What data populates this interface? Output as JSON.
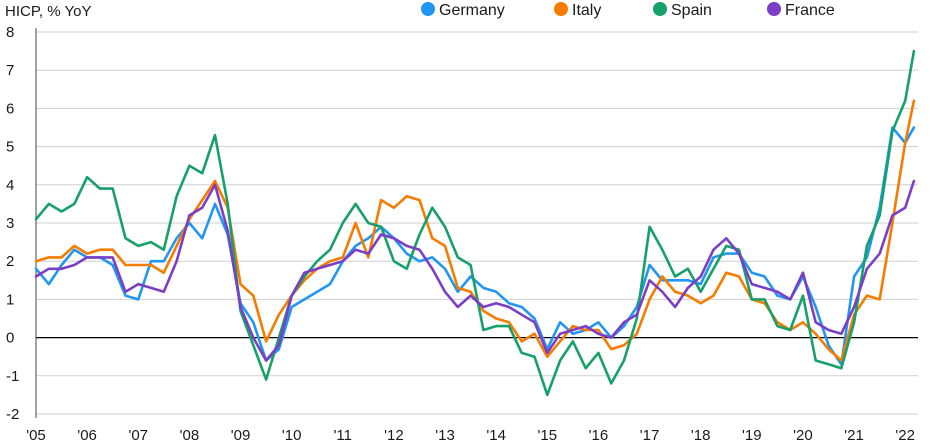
{
  "chart_data": {
    "type": "line",
    "ylabel": "HICP, % YoY",
    "ylim": [
      -2,
      8
    ],
    "yticks": [
      -2,
      -1,
      0,
      1,
      2,
      3,
      4,
      5,
      6,
      7,
      8
    ],
    "xlim": [
      2005.0,
      2022.25
    ],
    "xticks": [
      {
        "value": 2005,
        "label": "'05"
      },
      {
        "value": 2006,
        "label": "'06"
      },
      {
        "value": 2007,
        "label": "'07"
      },
      {
        "value": 2008,
        "label": "'08"
      },
      {
        "value": 2009,
        "label": "'09"
      },
      {
        "value": 2010,
        "label": "'10"
      },
      {
        "value": 2011,
        "label": "'11"
      },
      {
        "value": 2012,
        "label": "'12"
      },
      {
        "value": 2013,
        "label": "'13"
      },
      {
        "value": 2014,
        "label": "'14"
      },
      {
        "value": 2015,
        "label": "'15"
      },
      {
        "value": 2016,
        "label": "'16"
      },
      {
        "value": 2017,
        "label": "'17"
      },
      {
        "value": 2018,
        "label": "'18"
      },
      {
        "value": 2019,
        "label": "'19"
      },
      {
        "value": 2020,
        "label": "'20"
      },
      {
        "value": 2021,
        "label": "'21"
      },
      {
        "value": 2022,
        "label": "'22"
      }
    ],
    "grid": true,
    "legend_position": "top",
    "series": [
      {
        "name": "Germany",
        "color": "#2196f3",
        "points": [
          [
            2005.0,
            1.8
          ],
          [
            2005.25,
            1.4
          ],
          [
            2005.5,
            1.9
          ],
          [
            2005.75,
            2.3
          ],
          [
            2006.0,
            2.1
          ],
          [
            2006.25,
            2.1
          ],
          [
            2006.5,
            1.9
          ],
          [
            2006.75,
            1.1
          ],
          [
            2007.0,
            1.0
          ],
          [
            2007.25,
            2.0
          ],
          [
            2007.5,
            2.0
          ],
          [
            2007.75,
            2.6
          ],
          [
            2008.0,
            3.0
          ],
          [
            2008.25,
            2.6
          ],
          [
            2008.5,
            3.5
          ],
          [
            2008.75,
            2.7
          ],
          [
            2009.0,
            0.9
          ],
          [
            2009.25,
            0.4
          ],
          [
            2009.5,
            -0.6
          ],
          [
            2009.75,
            -0.3
          ],
          [
            2010.0,
            0.8
          ],
          [
            2010.25,
            1.0
          ],
          [
            2010.5,
            1.2
          ],
          [
            2010.75,
            1.4
          ],
          [
            2011.0,
            2.0
          ],
          [
            2011.25,
            2.4
          ],
          [
            2011.5,
            2.6
          ],
          [
            2011.75,
            2.9
          ],
          [
            2012.0,
            2.6
          ],
          [
            2012.25,
            2.2
          ],
          [
            2012.5,
            2.0
          ],
          [
            2012.75,
            2.1
          ],
          [
            2013.0,
            1.8
          ],
          [
            2013.25,
            1.2
          ],
          [
            2013.5,
            1.6
          ],
          [
            2013.75,
            1.3
          ],
          [
            2014.0,
            1.2
          ],
          [
            2014.25,
            0.9
          ],
          [
            2014.5,
            0.8
          ],
          [
            2014.75,
            0.5
          ],
          [
            2015.0,
            -0.3
          ],
          [
            2015.25,
            0.4
          ],
          [
            2015.5,
            0.1
          ],
          [
            2015.75,
            0.2
          ],
          [
            2016.0,
            0.4
          ],
          [
            2016.25,
            0.0
          ],
          [
            2016.5,
            0.3
          ],
          [
            2016.75,
            0.8
          ],
          [
            2017.0,
            1.9
          ],
          [
            2017.25,
            1.5
          ],
          [
            2017.5,
            1.5
          ],
          [
            2017.75,
            1.5
          ],
          [
            2018.0,
            1.4
          ],
          [
            2018.25,
            2.1
          ],
          [
            2018.5,
            2.2
          ],
          [
            2018.75,
            2.2
          ],
          [
            2019.0,
            1.7
          ],
          [
            2019.25,
            1.6
          ],
          [
            2019.5,
            1.1
          ],
          [
            2019.75,
            1.0
          ],
          [
            2020.0,
            1.6
          ],
          [
            2020.25,
            0.8
          ],
          [
            2020.5,
            -0.2
          ],
          [
            2020.75,
            -0.7
          ],
          [
            2021.0,
            1.6
          ],
          [
            2021.25,
            2.1
          ],
          [
            2021.5,
            3.4
          ],
          [
            2021.75,
            5.5
          ],
          [
            2022.0,
            5.1
          ],
          [
            2022.17,
            5.5
          ]
        ]
      },
      {
        "name": "Italy",
        "color": "#f57c00",
        "points": [
          [
            2005.0,
            2.0
          ],
          [
            2005.25,
            2.1
          ],
          [
            2005.5,
            2.1
          ],
          [
            2005.75,
            2.4
          ],
          [
            2006.0,
            2.2
          ],
          [
            2006.25,
            2.3
          ],
          [
            2006.5,
            2.3
          ],
          [
            2006.75,
            1.9
          ],
          [
            2007.0,
            1.9
          ],
          [
            2007.25,
            1.9
          ],
          [
            2007.5,
            1.7
          ],
          [
            2007.75,
            2.4
          ],
          [
            2008.0,
            3.1
          ],
          [
            2008.25,
            3.6
          ],
          [
            2008.5,
            4.1
          ],
          [
            2008.75,
            3.4
          ],
          [
            2009.0,
            1.4
          ],
          [
            2009.25,
            1.1
          ],
          [
            2009.5,
            -0.1
          ],
          [
            2009.75,
            0.6
          ],
          [
            2010.0,
            1.1
          ],
          [
            2010.25,
            1.5
          ],
          [
            2010.5,
            1.8
          ],
          [
            2010.75,
            2.0
          ],
          [
            2011.0,
            2.1
          ],
          [
            2011.25,
            3.0
          ],
          [
            2011.5,
            2.1
          ],
          [
            2011.75,
            3.6
          ],
          [
            2012.0,
            3.4
          ],
          [
            2012.25,
            3.7
          ],
          [
            2012.5,
            3.6
          ],
          [
            2012.75,
            2.6
          ],
          [
            2013.0,
            2.4
          ],
          [
            2013.25,
            1.3
          ],
          [
            2013.5,
            1.2
          ],
          [
            2013.75,
            0.7
          ],
          [
            2014.0,
            0.5
          ],
          [
            2014.25,
            0.4
          ],
          [
            2014.5,
            -0.1
          ],
          [
            2014.75,
            0.1
          ],
          [
            2015.0,
            -0.5
          ],
          [
            2015.25,
            -0.1
          ],
          [
            2015.5,
            0.3
          ],
          [
            2015.75,
            0.2
          ],
          [
            2016.0,
            0.2
          ],
          [
            2016.25,
            -0.3
          ],
          [
            2016.5,
            -0.2
          ],
          [
            2016.75,
            0.1
          ],
          [
            2017.0,
            1.0
          ],
          [
            2017.25,
            1.6
          ],
          [
            2017.5,
            1.2
          ],
          [
            2017.75,
            1.1
          ],
          [
            2018.0,
            0.9
          ],
          [
            2018.25,
            1.1
          ],
          [
            2018.5,
            1.7
          ],
          [
            2018.75,
            1.6
          ],
          [
            2019.0,
            1.0
          ],
          [
            2019.25,
            0.9
          ],
          [
            2019.5,
            0.4
          ],
          [
            2019.75,
            0.2
          ],
          [
            2020.0,
            0.4
          ],
          [
            2020.25,
            0.1
          ],
          [
            2020.5,
            -0.3
          ],
          [
            2020.75,
            -0.6
          ],
          [
            2021.0,
            0.6
          ],
          [
            2021.25,
            1.1
          ],
          [
            2021.5,
            1.0
          ],
          [
            2021.75,
            3.0
          ],
          [
            2022.0,
            5.1
          ],
          [
            2022.17,
            6.2
          ]
        ]
      },
      {
        "name": "Spain",
        "color": "#16a06a",
        "points": [
          [
            2005.0,
            3.1
          ],
          [
            2005.25,
            3.5
          ],
          [
            2005.5,
            3.3
          ],
          [
            2005.75,
            3.5
          ],
          [
            2006.0,
            4.2
          ],
          [
            2006.25,
            3.9
          ],
          [
            2006.5,
            3.9
          ],
          [
            2006.75,
            2.6
          ],
          [
            2007.0,
            2.4
          ],
          [
            2007.25,
            2.5
          ],
          [
            2007.5,
            2.3
          ],
          [
            2007.75,
            3.7
          ],
          [
            2008.0,
            4.5
          ],
          [
            2008.25,
            4.3
          ],
          [
            2008.5,
            5.3
          ],
          [
            2008.75,
            3.5
          ],
          [
            2009.0,
            0.7
          ],
          [
            2009.25,
            -0.2
          ],
          [
            2009.5,
            -1.1
          ],
          [
            2009.75,
            0.0
          ],
          [
            2010.0,
            1.1
          ],
          [
            2010.25,
            1.6
          ],
          [
            2010.5,
            2.0
          ],
          [
            2010.75,
            2.3
          ],
          [
            2011.0,
            3.0
          ],
          [
            2011.25,
            3.5
          ],
          [
            2011.5,
            3.0
          ],
          [
            2011.75,
            2.9
          ],
          [
            2012.0,
            2.0
          ],
          [
            2012.25,
            1.8
          ],
          [
            2012.5,
            2.7
          ],
          [
            2012.75,
            3.4
          ],
          [
            2013.0,
            2.9
          ],
          [
            2013.25,
            2.1
          ],
          [
            2013.5,
            1.9
          ],
          [
            2013.75,
            0.2
          ],
          [
            2014.0,
            0.3
          ],
          [
            2014.25,
            0.3
          ],
          [
            2014.5,
            -0.4
          ],
          [
            2014.75,
            -0.5
          ],
          [
            2015.0,
            -1.5
          ],
          [
            2015.25,
            -0.6
          ],
          [
            2015.5,
            -0.1
          ],
          [
            2015.75,
            -0.8
          ],
          [
            2016.0,
            -0.4
          ],
          [
            2016.25,
            -1.2
          ],
          [
            2016.5,
            -0.6
          ],
          [
            2016.75,
            0.5
          ],
          [
            2017.0,
            2.9
          ],
          [
            2017.25,
            2.3
          ],
          [
            2017.5,
            1.6
          ],
          [
            2017.75,
            1.8
          ],
          [
            2018.0,
            1.2
          ],
          [
            2018.25,
            1.8
          ],
          [
            2018.5,
            2.4
          ],
          [
            2018.75,
            2.3
          ],
          [
            2019.0,
            1.0
          ],
          [
            2019.25,
            1.0
          ],
          [
            2019.5,
            0.3
          ],
          [
            2019.75,
            0.2
          ],
          [
            2020.0,
            1.1
          ],
          [
            2020.25,
            -0.6
          ],
          [
            2020.5,
            -0.7
          ],
          [
            2020.75,
            -0.8
          ],
          [
            2021.0,
            0.4
          ],
          [
            2021.25,
            2.4
          ],
          [
            2021.5,
            3.2
          ],
          [
            2021.75,
            5.4
          ],
          [
            2022.0,
            6.2
          ],
          [
            2022.17,
            7.5
          ]
        ]
      },
      {
        "name": "France",
        "color": "#7b3fc6",
        "points": [
          [
            2005.0,
            1.6
          ],
          [
            2005.25,
            1.8
          ],
          [
            2005.5,
            1.8
          ],
          [
            2005.75,
            1.9
          ],
          [
            2006.0,
            2.1
          ],
          [
            2006.25,
            2.1
          ],
          [
            2006.5,
            2.1
          ],
          [
            2006.75,
            1.2
          ],
          [
            2007.0,
            1.4
          ],
          [
            2007.25,
            1.3
          ],
          [
            2007.5,
            1.2
          ],
          [
            2007.75,
            2.0
          ],
          [
            2008.0,
            3.2
          ],
          [
            2008.25,
            3.4
          ],
          [
            2008.5,
            4.0
          ],
          [
            2008.75,
            2.8
          ],
          [
            2009.0,
            0.8
          ],
          [
            2009.25,
            0.0
          ],
          [
            2009.5,
            -0.6
          ],
          [
            2009.75,
            -0.2
          ],
          [
            2010.0,
            1.1
          ],
          [
            2010.25,
            1.7
          ],
          [
            2010.5,
            1.8
          ],
          [
            2010.75,
            1.9
          ],
          [
            2011.0,
            2.0
          ],
          [
            2011.25,
            2.3
          ],
          [
            2011.5,
            2.2
          ],
          [
            2011.75,
            2.7
          ],
          [
            2012.0,
            2.6
          ],
          [
            2012.25,
            2.4
          ],
          [
            2012.5,
            2.3
          ],
          [
            2012.75,
            1.8
          ],
          [
            2013.0,
            1.2
          ],
          [
            2013.25,
            0.8
          ],
          [
            2013.5,
            1.1
          ],
          [
            2013.75,
            0.8
          ],
          [
            2014.0,
            0.9
          ],
          [
            2014.25,
            0.8
          ],
          [
            2014.5,
            0.6
          ],
          [
            2014.75,
            0.4
          ],
          [
            2015.0,
            -0.4
          ],
          [
            2015.25,
            0.1
          ],
          [
            2015.5,
            0.2
          ],
          [
            2015.75,
            0.3
          ],
          [
            2016.0,
            0.1
          ],
          [
            2016.25,
            0.0
          ],
          [
            2016.5,
            0.4
          ],
          [
            2016.75,
            0.6
          ],
          [
            2017.0,
            1.5
          ],
          [
            2017.25,
            1.2
          ],
          [
            2017.5,
            0.8
          ],
          [
            2017.75,
            1.3
          ],
          [
            2018.0,
            1.6
          ],
          [
            2018.25,
            2.3
          ],
          [
            2018.5,
            2.6
          ],
          [
            2018.75,
            2.2
          ],
          [
            2019.0,
            1.4
          ],
          [
            2019.25,
            1.3
          ],
          [
            2019.5,
            1.2
          ],
          [
            2019.75,
            1.0
          ],
          [
            2020.0,
            1.7
          ],
          [
            2020.25,
            0.4
          ],
          [
            2020.5,
            0.2
          ],
          [
            2020.75,
            0.1
          ],
          [
            2021.0,
            0.8
          ],
          [
            2021.25,
            1.8
          ],
          [
            2021.5,
            2.2
          ],
          [
            2021.75,
            3.2
          ],
          [
            2022.0,
            3.4
          ],
          [
            2022.17,
            4.1
          ]
        ]
      }
    ]
  }
}
